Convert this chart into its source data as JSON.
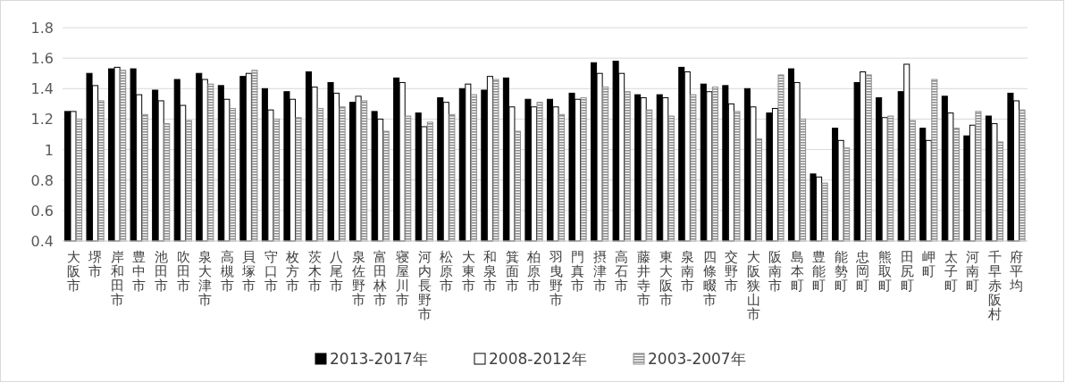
{
  "chart_data": {
    "type": "bar",
    "categories": [
      "大阪市",
      "堺市",
      "岸和田市",
      "豊中市",
      "池田市",
      "吹田市",
      "泉大津市",
      "高槻市",
      "貝塚市",
      "守口市",
      "枚方市",
      "茨木市",
      "八尾市",
      "泉佐野市",
      "富田林市",
      "寝屋川市",
      "河内長野市",
      "松原市",
      "大東市",
      "和泉市",
      "箕面市",
      "柏原市",
      "羽曳野市",
      "門真市",
      "摂津市",
      "高石市",
      "藤井寺市",
      "東大阪市",
      "泉南市",
      "四條畷市",
      "交野市",
      "大阪狭山市",
      "阪南市",
      "島本町",
      "豊能町",
      "能勢町",
      "忠岡町",
      "熊取町",
      "田尻町",
      "岬町",
      "太子町",
      "河南町",
      "千早赤阪村",
      "府平均"
    ],
    "series": [
      {
        "name": "2013-2017年",
        "color": "#000000",
        "values": [
          1.25,
          1.5,
          1.53,
          1.53,
          1.39,
          1.46,
          1.5,
          1.42,
          1.48,
          1.4,
          1.38,
          1.51,
          1.44,
          1.31,
          1.25,
          1.47,
          1.24,
          1.34,
          1.4,
          1.39,
          1.47,
          1.33,
          1.33,
          1.37,
          1.57,
          1.58,
          1.36,
          1.36,
          1.54,
          1.43,
          1.42,
          1.4,
          1.24,
          1.53,
          0.84,
          1.14,
          1.44,
          1.34,
          1.38,
          1.14,
          1.35,
          1.09,
          1.22,
          1.37
        ]
      },
      {
        "name": "2008-2012年",
        "color": "#ffffff",
        "values": [
          1.25,
          1.42,
          1.54,
          1.36,
          1.32,
          1.29,
          1.46,
          1.33,
          1.5,
          1.26,
          1.33,
          1.41,
          1.37,
          1.35,
          1.2,
          1.44,
          1.15,
          1.31,
          1.43,
          1.48,
          1.28,
          1.28,
          1.28,
          1.33,
          1.5,
          1.5,
          1.34,
          1.34,
          1.51,
          1.38,
          1.3,
          1.28,
          1.27,
          1.44,
          0.82,
          1.06,
          1.51,
          1.21,
          1.56,
          1.06,
          1.24,
          1.16,
          1.17,
          1.32
        ]
      },
      {
        "name": "2003-2007年",
        "color": "#8c8c8c",
        "values": [
          1.2,
          1.32,
          1.52,
          1.23,
          1.17,
          1.19,
          1.43,
          1.27,
          1.52,
          1.2,
          1.21,
          1.27,
          1.28,
          1.32,
          1.12,
          1.22,
          1.18,
          1.23,
          1.36,
          1.46,
          1.12,
          1.31,
          1.23,
          1.34,
          1.41,
          1.38,
          1.26,
          1.22,
          1.36,
          1.41,
          1.25,
          1.07,
          1.49,
          1.2,
          0.78,
          1.01,
          1.49,
          1.22,
          1.19,
          1.46,
          1.14,
          1.25,
          1.05,
          1.26
        ]
      }
    ],
    "ylim": [
      0.4,
      1.8
    ],
    "yticks": [
      0.4,
      0.6,
      0.8,
      1,
      1.2,
      1.4,
      1.6,
      1.8
    ],
    "grid": "y",
    "legend": "bottom"
  }
}
